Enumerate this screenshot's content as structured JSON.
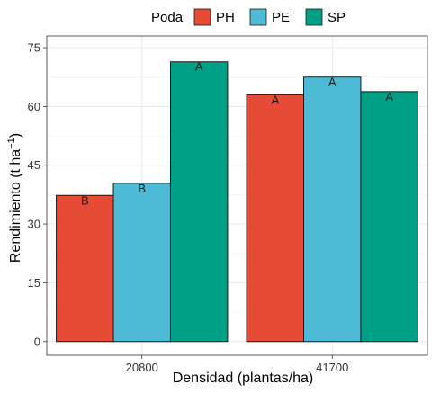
{
  "chart_data": {
    "type": "bar",
    "title": "",
    "xlabel": "Densidad (plantas/ha)",
    "ylabel": "Rendimiento (t ha",
    "ylabel_sup": "−1",
    "ylabel_close": ")",
    "categories": [
      "20800",
      "41700"
    ],
    "ylim": [
      -3.5,
      78
    ],
    "yticks": [
      0,
      15,
      30,
      45,
      60,
      75
    ],
    "grid": true,
    "legend": {
      "title": "Poda",
      "position": "top"
    },
    "series": [
      {
        "name": "PH",
        "color": "#E64B35",
        "values": [
          37.3,
          63.0
        ],
        "labels": [
          "B",
          "A"
        ]
      },
      {
        "name": "PE",
        "color": "#4DBBD5",
        "values": [
          40.4,
          67.5
        ],
        "labels": [
          "B",
          "A"
        ]
      },
      {
        "name": "SP",
        "color": "#00A087",
        "values": [
          71.4,
          63.8
        ],
        "labels": [
          "A",
          "A"
        ]
      }
    ]
  }
}
